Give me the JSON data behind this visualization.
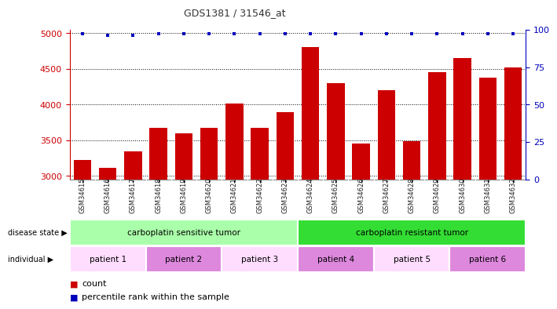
{
  "title": "GDS1381 / 31546_at",
  "samples": [
    "GSM34615",
    "GSM34616",
    "GSM34617",
    "GSM34618",
    "GSM34619",
    "GSM34620",
    "GSM34621",
    "GSM34622",
    "GSM34623",
    "GSM34624",
    "GSM34625",
    "GSM34626",
    "GSM34627",
    "GSM34628",
    "GSM34629",
    "GSM34630",
    "GSM34631",
    "GSM34632"
  ],
  "counts": [
    3220,
    3110,
    3340,
    3670,
    3600,
    3670,
    4010,
    3670,
    3890,
    4810,
    4300,
    3450,
    4200,
    3490,
    4450,
    4650,
    4380,
    4520
  ],
  "percentile_ranks": [
    97,
    96,
    96,
    97,
    97,
    97,
    97,
    97,
    97,
    97,
    97,
    97,
    97,
    97,
    97,
    97,
    97,
    97
  ],
  "bar_color": "#cc0000",
  "dot_color": "#0000bb",
  "ylim_left": [
    2950,
    5050
  ],
  "ylim_right": [
    0,
    100
  ],
  "yticks_left": [
    3000,
    3500,
    4000,
    4500,
    5000
  ],
  "yticks_right": [
    0,
    25,
    50,
    75,
    100
  ],
  "disease_state_groups": [
    {
      "label": "carboplatin sensitive tumor",
      "start": 0,
      "end": 9,
      "color": "#aaffaa"
    },
    {
      "label": "carboplatin resistant tumor",
      "start": 9,
      "end": 18,
      "color": "#33dd33"
    }
  ],
  "individual_groups": [
    {
      "label": "patient 1",
      "start": 0,
      "end": 3,
      "color": "#ffddff"
    },
    {
      "label": "patient 2",
      "start": 3,
      "end": 6,
      "color": "#dd88dd"
    },
    {
      "label": "patient 3",
      "start": 6,
      "end": 9,
      "color": "#ffddff"
    },
    {
      "label": "patient 4",
      "start": 9,
      "end": 12,
      "color": "#dd88dd"
    },
    {
      "label": "patient 5",
      "start": 12,
      "end": 15,
      "color": "#ffddff"
    },
    {
      "label": "patient 6",
      "start": 15,
      "end": 18,
      "color": "#dd88dd"
    }
  ],
  "legend_count_label": "count",
  "legend_percentile_label": "percentile rank within the sample",
  "label_disease_state": "disease state",
  "label_individual": "individual",
  "title_color": "#333333",
  "left_axis_color": "#cc0000",
  "right_axis_color": "#0000bb",
  "xtick_bg_color": "#d0d0d0"
}
